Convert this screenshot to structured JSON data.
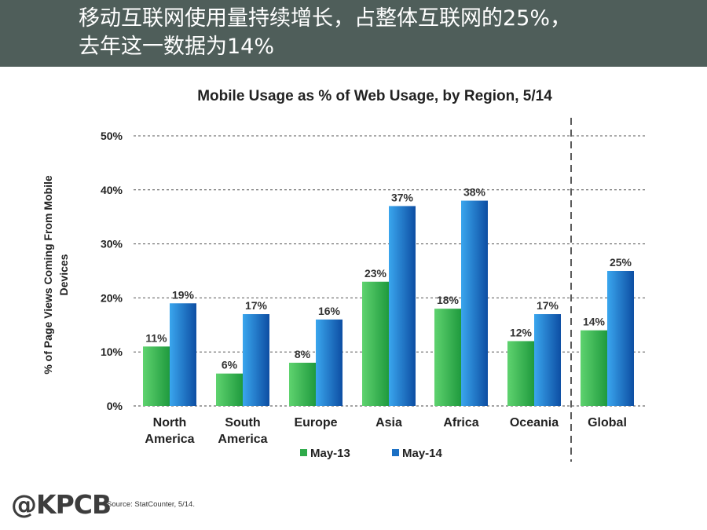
{
  "header": {
    "line1": "移动互联网使用量持续增长，占整体互联网的25%，",
    "line2": "去年这一数据为14%"
  },
  "chart_data": {
    "type": "bar",
    "title": "Mobile Usage as % of Web Usage, by Region, 5/14",
    "ylabel_lines": [
      "% of Page Views Coming From Mobile",
      "Devices"
    ],
    "xlabel": "",
    "categories": [
      [
        "North",
        "America"
      ],
      [
        "South",
        "America"
      ],
      [
        "Europe"
      ],
      [
        "Asia"
      ],
      [
        "Africa"
      ],
      [
        "Oceania"
      ],
      [
        "Global"
      ]
    ],
    "series": [
      {
        "name": "May-13",
        "values": [
          11,
          6,
          8,
          23,
          18,
          12,
          14
        ],
        "color": "#2eaa4a"
      },
      {
        "name": "May-14",
        "values": [
          19,
          17,
          16,
          37,
          38,
          17,
          25
        ],
        "color": "#1a6fc4"
      }
    ],
    "data_labels": [
      [
        "11%",
        "6%",
        "8%",
        "23%",
        "18%",
        "12%",
        "14%"
      ],
      [
        "19%",
        "17%",
        "16%",
        "37%",
        "38%",
        "17%",
        "25%"
      ]
    ],
    "ylim": [
      0,
      50
    ],
    "yticks": [
      0,
      10,
      20,
      30,
      40,
      50
    ],
    "ytick_labels": [
      "0%",
      "10%",
      "20%",
      "30%",
      "40%",
      "50%"
    ],
    "grid": true,
    "separator_before_last": true,
    "legend_position": "bottom-center"
  },
  "footer": {
    "logo": "@KPCB",
    "source": "Source: StatCounter, 5/14."
  }
}
